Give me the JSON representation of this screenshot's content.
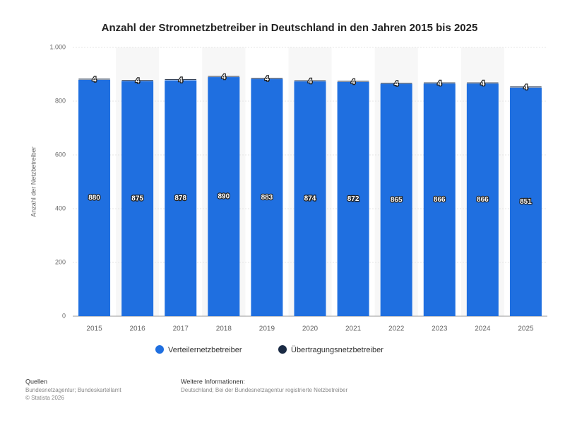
{
  "chart_data": {
    "type": "stacked-bar",
    "title": "Anzahl der Stromnetzbetreiber in Deutschland in den Jahren 2015 bis 2025",
    "y_label": "Anzahl der Netzbetreiber",
    "categories": [
      "2015",
      "2016",
      "2017",
      "2018",
      "2019",
      "2020",
      "2021",
      "2022",
      "2023",
      "2024",
      "2025"
    ],
    "series": [
      {
        "name": "Verteilernetzbetreiber",
        "color": "#1f6fe0",
        "values": [
          880,
          875,
          878,
          890,
          883,
          874,
          872,
          865,
          866,
          866,
          851
        ]
      },
      {
        "name": "Übertragungsnetzbetreiber",
        "color": "#1a2a44",
        "values": [
          4,
          4,
          4,
          4,
          4,
          4,
          4,
          4,
          4,
          4,
          4
        ]
      }
    ],
    "ylim": [
      0,
      1000
    ],
    "yticks": [
      0,
      200,
      400,
      600,
      800,
      {
        "value": 1000,
        "label": "1.000"
      }
    ],
    "grid": true,
    "legend": "bottom",
    "sources": {
      "heading": "Quellen",
      "lines": [
        "Bundesnetzagentur; Bundeskartellamt",
        "© Statista 2026"
      ]
    },
    "more_info": {
      "heading": "Weitere Informationen:",
      "text": "Deutschland; Bei der Bundesnetzagentur registrierte Netzbetreiber"
    }
  }
}
